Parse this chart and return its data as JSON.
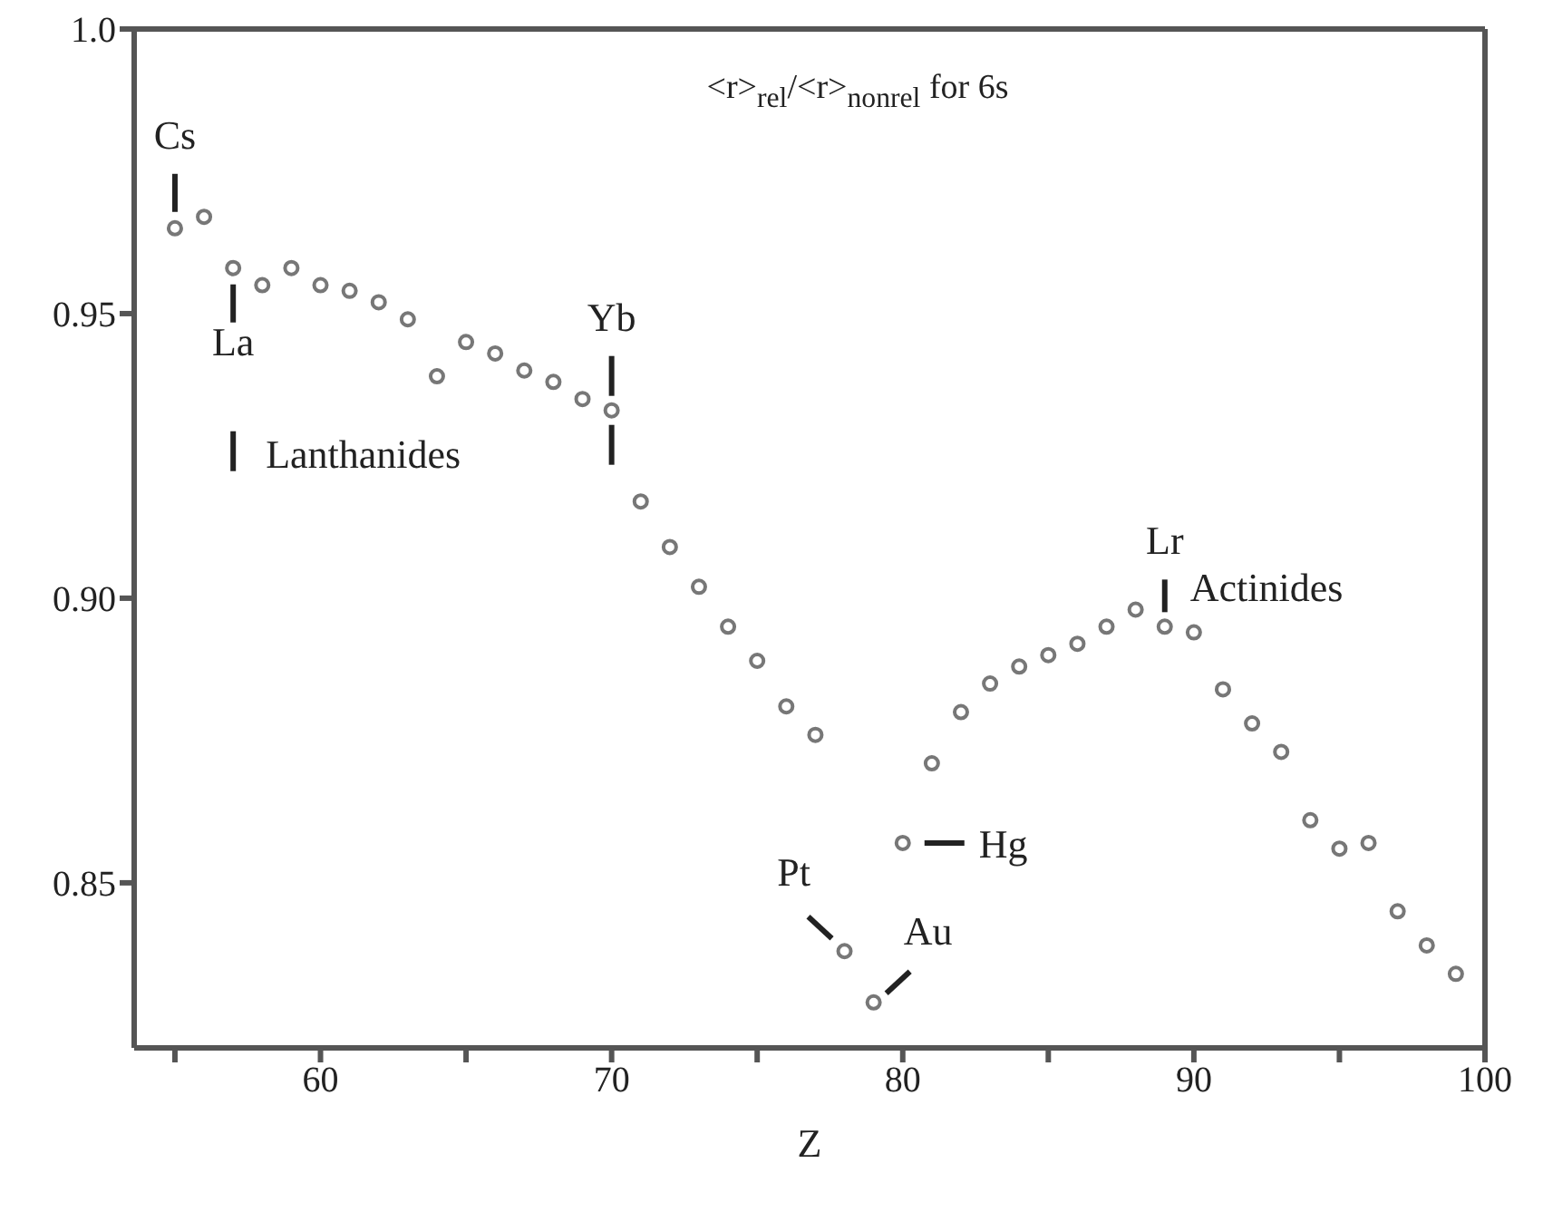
{
  "chart_data": {
    "type": "scatter",
    "title": "<r>$_{rel}$/<r>$_{nonrel}$ for 6s",
    "xlabel": "Z",
    "x": [
      55,
      56,
      57,
      58,
      59,
      60,
      61,
      62,
      63,
      64,
      65,
      66,
      67,
      68,
      69,
      70,
      71,
      72,
      73,
      74,
      75,
      76,
      77,
      78,
      79,
      80,
      81,
      82,
      83,
      84,
      85,
      86,
      87,
      88,
      89,
      90,
      91,
      92,
      93,
      94,
      95,
      96,
      97,
      98,
      99
    ],
    "series": [
      {
        "color": "#777777",
        "values": [
          0.965,
          0.967,
          0.958,
          0.955,
          0.958,
          0.955,
          0.954,
          0.952,
          0.949,
          0.939,
          0.945,
          0.943,
          0.94,
          0.938,
          0.935,
          0.933,
          0.917,
          0.909,
          0.902,
          0.895,
          0.889,
          0.881,
          0.876,
          0.838,
          0.829,
          0.857,
          0.871,
          0.88,
          0.885,
          0.888,
          0.89,
          0.892,
          0.895,
          0.898,
          0.895,
          0.894,
          0.884,
          0.878,
          0.873,
          0.861,
          0.856,
          0.857,
          0.845,
          0.839,
          0.834
        ]
      }
    ],
    "xlim": [
      53.6,
      100
    ],
    "xticks": [
      {
        "value": 55,
        "label": null
      },
      60,
      {
        "value": 65,
        "label": null
      },
      70,
      {
        "value": 75,
        "label": null
      },
      80,
      {
        "value": 85,
        "label": null
      },
      90,
      {
        "value": 95,
        "label": null
      },
      100
    ],
    "ylim": [
      0.821,
      1.0
    ],
    "yticks": [
      0.85,
      {
        "value": 0.9,
        "label": "0.90"
      },
      0.95,
      {
        "value": 1.0,
        "label": "1.0"
      }
    ],
    "marker": "circle",
    "annotations": [
      {
        "text": "Cs",
        "x": 55,
        "y": 0.965
      },
      {
        "text": "La",
        "x": 57,
        "y": 0.958
      },
      "Lanthanides",
      {
        "text": "Yb",
        "x": 70,
        "y": 0.933
      },
      {
        "text": "Lr",
        "x": 89,
        "y": 0.895
      },
      "Actinides",
      {
        "text": "Pt",
        "x": 78,
        "y": 0.838
      },
      {
        "text": "Au",
        "x": 79,
        "y": 0.829
      },
      {
        "text": "Hg",
        "x": 80,
        "y": 0.857
      }
    ]
  }
}
